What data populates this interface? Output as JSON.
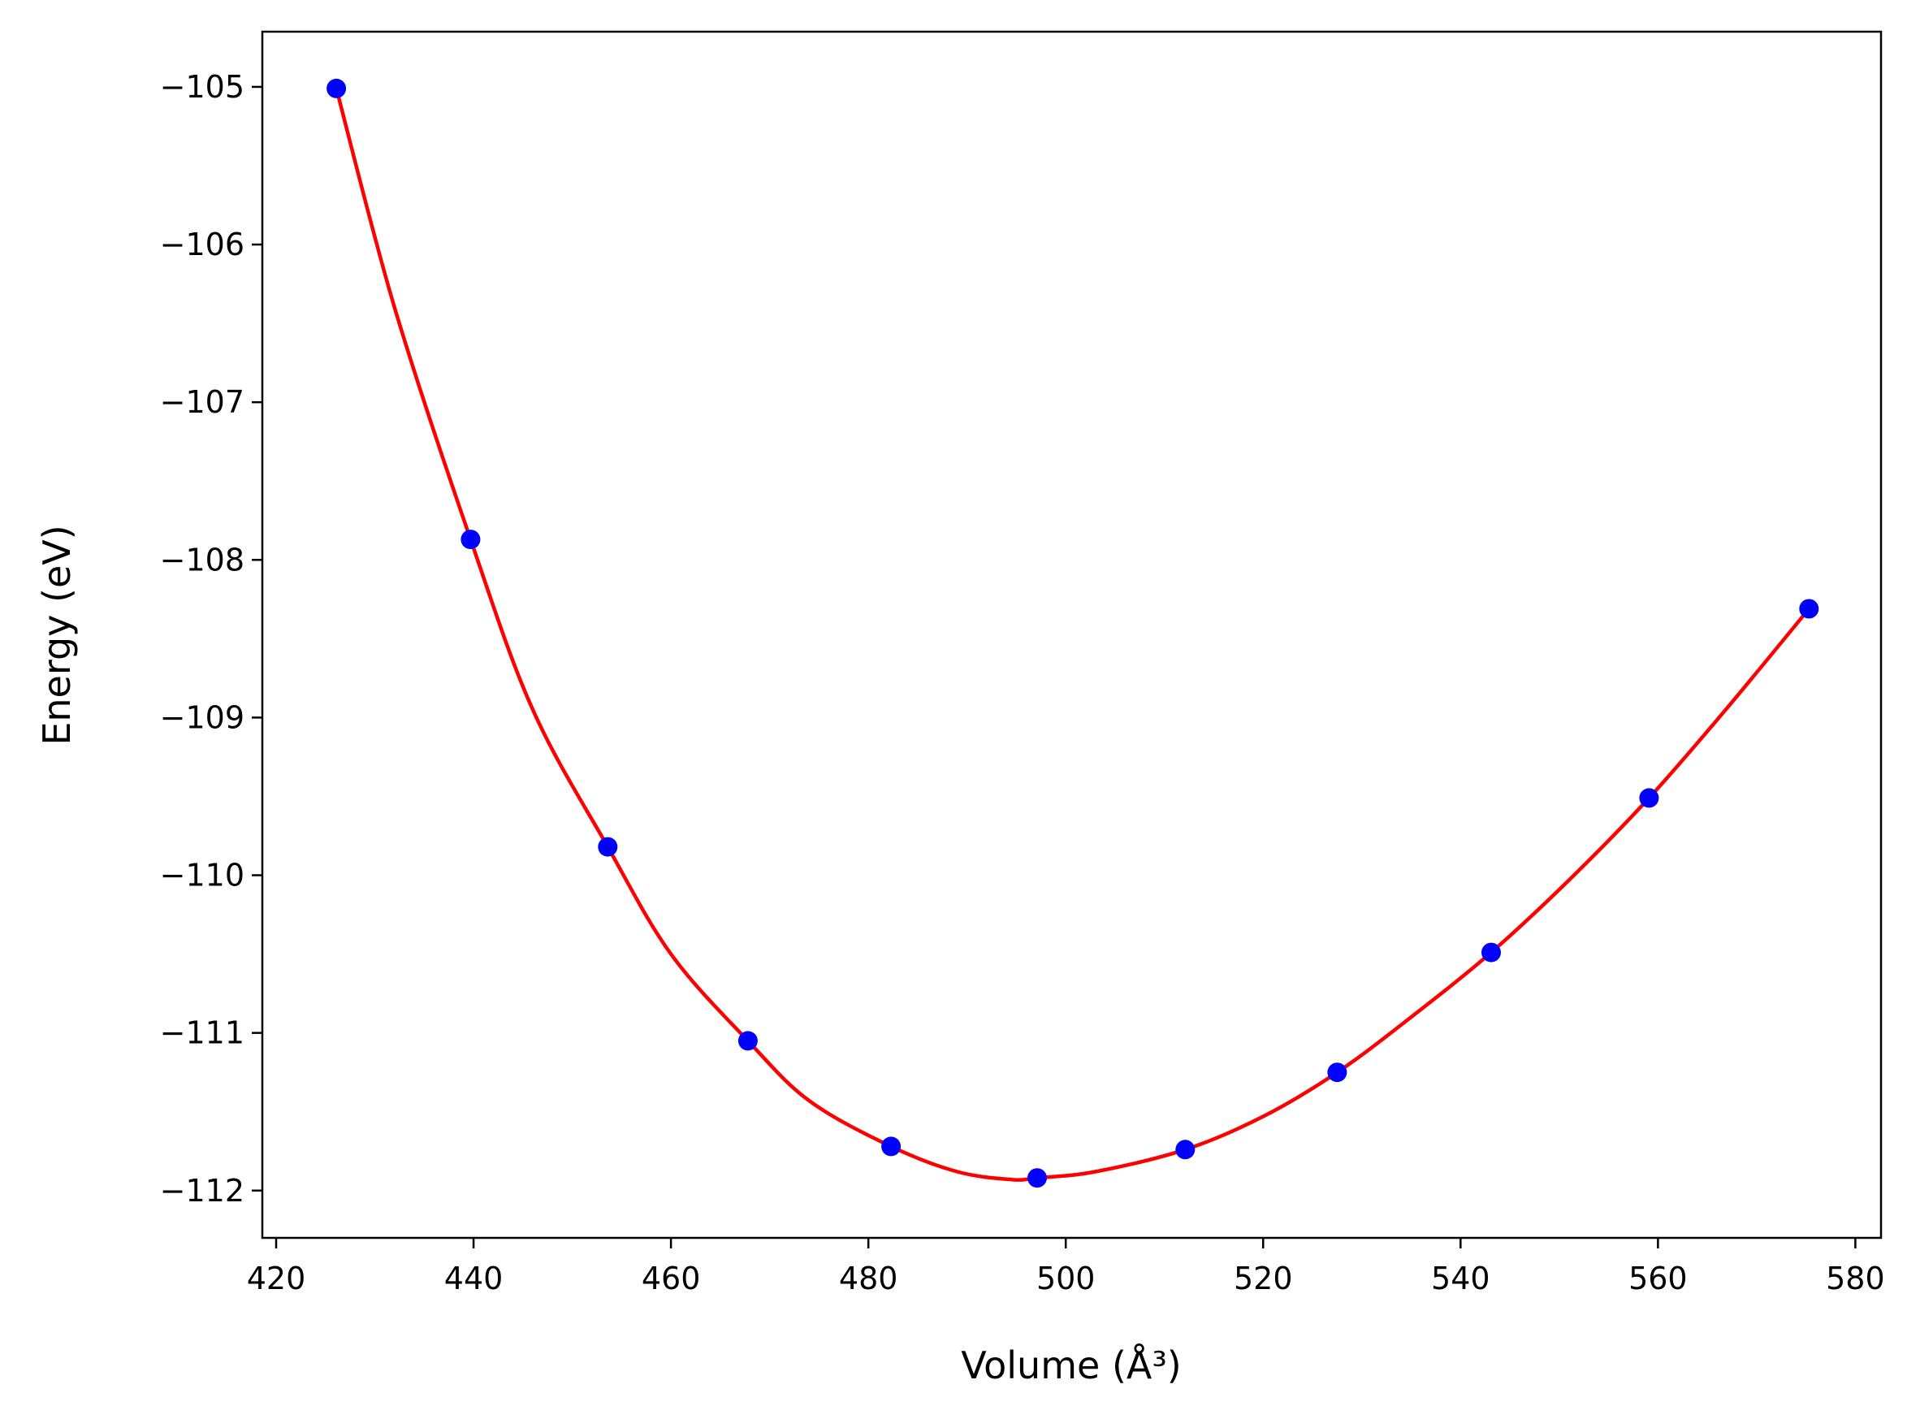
{
  "chart_data": {
    "type": "scatter",
    "title": "",
    "xlabel": "Volume",
    "xlabel_unit": "(Å³)",
    "ylabel": "Energy",
    "ylabel_unit": "(eV)",
    "xlim": [
      418.6,
      582.6
    ],
    "ylim": [
      -112.3,
      -104.65
    ],
    "xticks": [
      420,
      440,
      460,
      480,
      500,
      520,
      540,
      560,
      580
    ],
    "yticks": [
      -105,
      -106,
      -107,
      -108,
      -109,
      -110,
      -111,
      -112
    ],
    "xtick_labels": [
      "420",
      "440",
      "460",
      "480",
      "500",
      "520",
      "540",
      "560",
      "580"
    ],
    "ytick_labels": [
      "−105",
      "−106",
      "−107",
      "−108",
      "−109",
      "−110",
      "−111",
      "−112"
    ],
    "grid": false,
    "legend": "none",
    "series": [
      {
        "kind": "points",
        "color": "#0000ff",
        "x": [
          426.1,
          439.7,
          453.6,
          467.8,
          482.3,
          497.1,
          512.1,
          527.5,
          543.1,
          559.1,
          575.3
        ],
        "y": [
          -105.01,
          -107.87,
          -109.82,
          -111.05,
          -111.72,
          -111.92,
          -111.74,
          -111.25,
          -110.49,
          -109.51,
          -108.31
        ]
      },
      {
        "kind": "fit-curve",
        "color": "#ff0000",
        "x": [
          426.1,
          432.0,
          439.7,
          446.0,
          453.6,
          460.0,
          467.8,
          474.0,
          482.3,
          489.0,
          494.5,
          497.1,
          503.0,
          512.1,
          520.0,
          527.5,
          535.0,
          543.1,
          551.0,
          559.1,
          567.0,
          575.3
        ],
        "y": [
          -105.01,
          -106.4,
          -107.87,
          -108.95,
          -109.82,
          -110.5,
          -111.05,
          -111.43,
          -111.72,
          -111.88,
          -111.93,
          -111.92,
          -111.88,
          -111.74,
          -111.53,
          -111.25,
          -110.9,
          -110.49,
          -110.03,
          -109.51,
          -108.94,
          -108.31
        ]
      }
    ]
  }
}
